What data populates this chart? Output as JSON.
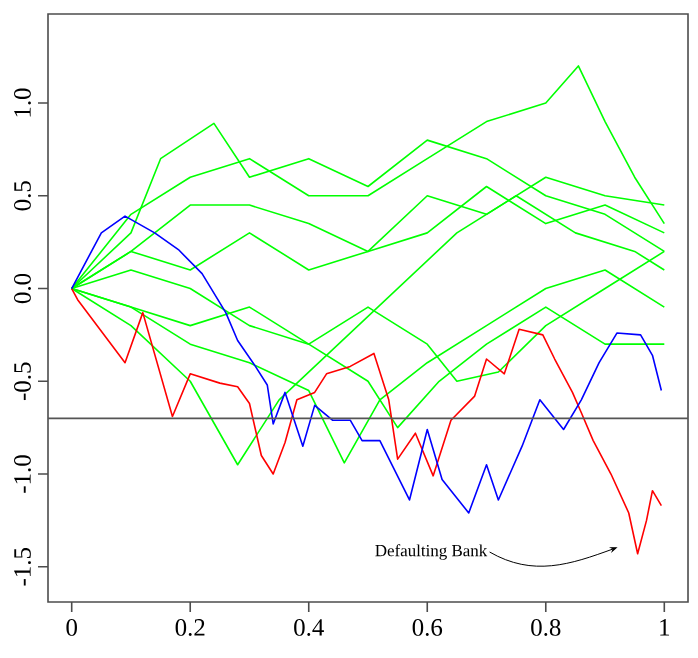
{
  "chart_data": {
    "type": "line",
    "xlim": [
      -0.04,
      1.04
    ],
    "ylim": [
      -1.69,
      1.48
    ],
    "xticks": [
      0,
      0.2,
      0.4,
      0.6,
      0.8,
      1
    ],
    "yticks": [
      {
        "value": -1.5,
        "label": "-1.5"
      },
      {
        "value": -1,
        "label": "-1.0"
      },
      {
        "value": -0.5,
        "label": "-0.5"
      },
      {
        "value": 0,
        "label": "0.0"
      },
      {
        "value": 0.5,
        "label": "0.5"
      },
      {
        "value": 1,
        "label": "1.0"
      }
    ],
    "ref_lines": [
      {
        "axis": "y",
        "value": -0.7,
        "color": "#555555"
      }
    ],
    "annotations": [
      "Defaulting Bank"
    ],
    "series": [
      {
        "color": "#00ff00",
        "x": [
          0,
          0.1,
          0.2,
          0.3,
          0.4,
          0.5,
          0.6,
          0.7,
          0.8,
          0.855,
          0.9,
          0.95,
          1
        ],
        "values": [
          0,
          0.4,
          0.6,
          0.7,
          0.5,
          0.5,
          0.7,
          0.9,
          1.0,
          1.2,
          0.9,
          0.6,
          0.35
        ]
      },
      {
        "color": "#00ff00",
        "x": [
          0,
          0.1,
          0.15,
          0.24,
          0.3,
          0.4,
          0.5,
          0.6,
          0.7,
          0.8,
          0.9,
          1
        ],
        "values": [
          0,
          0.3,
          0.7,
          0.89,
          0.6,
          0.7,
          0.55,
          0.8,
          0.7,
          0.5,
          0.4,
          0.2
        ]
      },
      {
        "color": "#00ff00",
        "x": [
          0,
          0.1,
          0.2,
          0.3,
          0.4,
          0.5,
          0.6,
          0.7,
          0.8,
          0.9,
          1
        ],
        "values": [
          0,
          0.2,
          0.45,
          0.45,
          0.35,
          0.2,
          0.3,
          0.55,
          0.35,
          0.45,
          0.3
        ]
      },
      {
        "color": "#00ff00",
        "x": [
          0,
          0.1,
          0.2,
          0.28,
          0.35,
          0.45,
          0.55,
          0.65,
          0.75,
          0.85,
          0.95,
          1
        ],
        "values": [
          0,
          -0.2,
          -0.5,
          -0.95,
          -0.6,
          -0.3,
          0,
          0.3,
          0.5,
          0.3,
          0.2,
          0.1
        ]
      },
      {
        "color": "#00ff00",
        "x": [
          0,
          0.1,
          0.2,
          0.3,
          0.4,
          0.46,
          0.52,
          0.6,
          0.7,
          0.8,
          0.9,
          1
        ],
        "values": [
          0,
          -0.1,
          -0.3,
          -0.4,
          -0.55,
          -0.94,
          -0.6,
          -0.4,
          -0.2,
          0,
          0.1,
          -0.1
        ]
      },
      {
        "color": "#00ff00",
        "x": [
          0,
          0.1,
          0.2,
          0.3,
          0.4,
          0.5,
          0.6,
          0.65,
          0.72,
          0.8,
          0.9,
          1
        ],
        "values": [
          0,
          0.1,
          0,
          -0.2,
          -0.3,
          -0.1,
          -0.3,
          -0.5,
          -0.45,
          -0.2,
          0,
          0.2
        ]
      },
      {
        "color": "#00ff00",
        "x": [
          0,
          0.1,
          0.2,
          0.3,
          0.4,
          0.5,
          0.6,
          0.7,
          0.8,
          0.9,
          1
        ],
        "values": [
          0,
          0.2,
          0.1,
          0.3,
          0.1,
          0.2,
          0.5,
          0.4,
          0.6,
          0.5,
          0.45
        ]
      },
      {
        "color": "#00ff00",
        "x": [
          0,
          0.1,
          0.2,
          0.3,
          0.4,
          0.5,
          0.55,
          0.62,
          0.7,
          0.8,
          0.9,
          1
        ],
        "values": [
          0,
          -0.1,
          -0.2,
          -0.1,
          -0.3,
          -0.5,
          -0.75,
          -0.5,
          -0.3,
          -0.1,
          -0.3,
          -0.3
        ]
      },
      {
        "color": "#ff0000",
        "x": [
          0,
          0.01,
          0.09,
          0.12,
          0.17,
          0.2,
          0.25,
          0.28,
          0.3,
          0.32,
          0.34,
          0.36,
          0.38,
          0.41,
          0.43,
          0.47,
          0.51,
          0.535,
          0.55,
          0.58,
          0.61,
          0.64,
          0.68,
          0.7,
          0.73,
          0.755,
          0.795,
          0.815,
          0.845,
          0.86,
          0.88,
          0.91,
          0.94,
          0.955,
          0.97,
          0.98,
          0.995
        ],
        "values": [
          0,
          -0.06,
          -0.4,
          -0.13,
          -0.69,
          -0.46,
          -0.51,
          -0.53,
          -0.62,
          -0.9,
          -1.0,
          -0.83,
          -0.6,
          -0.56,
          -0.46,
          -0.42,
          -0.35,
          -0.6,
          -0.92,
          -0.78,
          -1.01,
          -0.71,
          -0.58,
          -0.38,
          -0.46,
          -0.22,
          -0.25,
          -0.38,
          -0.56,
          -0.67,
          -0.82,
          -1.0,
          -1.21,
          -1.43,
          -1.25,
          -1.09,
          -1.17
        ]
      },
      {
        "color": "#0000ff",
        "x": [
          0,
          0.05,
          0.09,
          0.14,
          0.18,
          0.22,
          0.26,
          0.28,
          0.31,
          0.33,
          0.34,
          0.36,
          0.39,
          0.41,
          0.44,
          0.47,
          0.49,
          0.52,
          0.57,
          0.6,
          0.625,
          0.67,
          0.7,
          0.72,
          0.76,
          0.79,
          0.83,
          0.86,
          0.89,
          0.92,
          0.96,
          0.98,
          0.995
        ],
        "values": [
          0,
          0.3,
          0.39,
          0.3,
          0.21,
          0.08,
          -0.13,
          -0.28,
          -0.42,
          -0.52,
          -0.73,
          -0.56,
          -0.85,
          -0.63,
          -0.71,
          -0.71,
          -0.82,
          -0.82,
          -1.14,
          -0.76,
          -1.03,
          -1.21,
          -0.95,
          -1.14,
          -0.85,
          -0.6,
          -0.76,
          -0.6,
          -0.4,
          -0.24,
          -0.25,
          -0.36,
          -0.55
        ]
      }
    ]
  }
}
